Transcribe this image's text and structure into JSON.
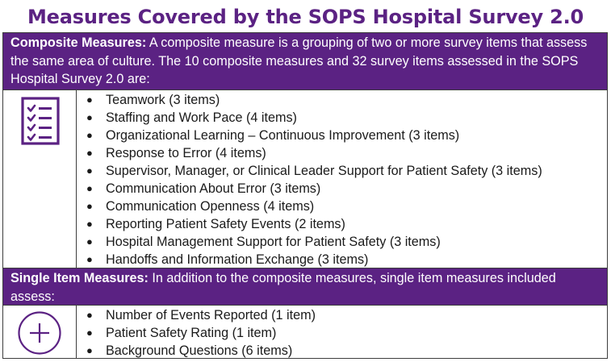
{
  "title": "Measures Covered by the SOPS Hospital Survey 2.0",
  "composite": {
    "lead": "Composite Measures:",
    "text": " A composite measure is a grouping of two or more survey items that assess the same area of culture. The 10 composite measures and 32 survey items assessed in the SOPS Hospital Survey 2.0 are:",
    "icon": "checklist-icon",
    "items": [
      "Teamwork (3 items)",
      "Staffing and Work Pace (4 items)",
      "Organizational Learning – Continuous Improvement (3 items)",
      "Response to Error (4 items)",
      "Supervisor, Manager, or Clinical Leader Support for Patient Safety (3 items)",
      "Communication About Error (3 items)",
      "Communication Openness (4 items)",
      "Reporting Patient Safety Events (2 items)",
      "Hospital Management Support for Patient Safety (3 items)",
      "Handoffs and Information Exchange (3 items)"
    ]
  },
  "single": {
    "lead": "Single Item Measures:",
    "text": " In addition to the composite measures, single item measures included assess:",
    "icon": "plus-circle-icon",
    "items": [
      "Number of Events Reported (1 item)",
      "Patient Safety Rating (1 item)",
      "Background Questions (6 items)"
    ]
  },
  "colors": {
    "purple": "#5b2283",
    "border": "#3d3d3d"
  }
}
